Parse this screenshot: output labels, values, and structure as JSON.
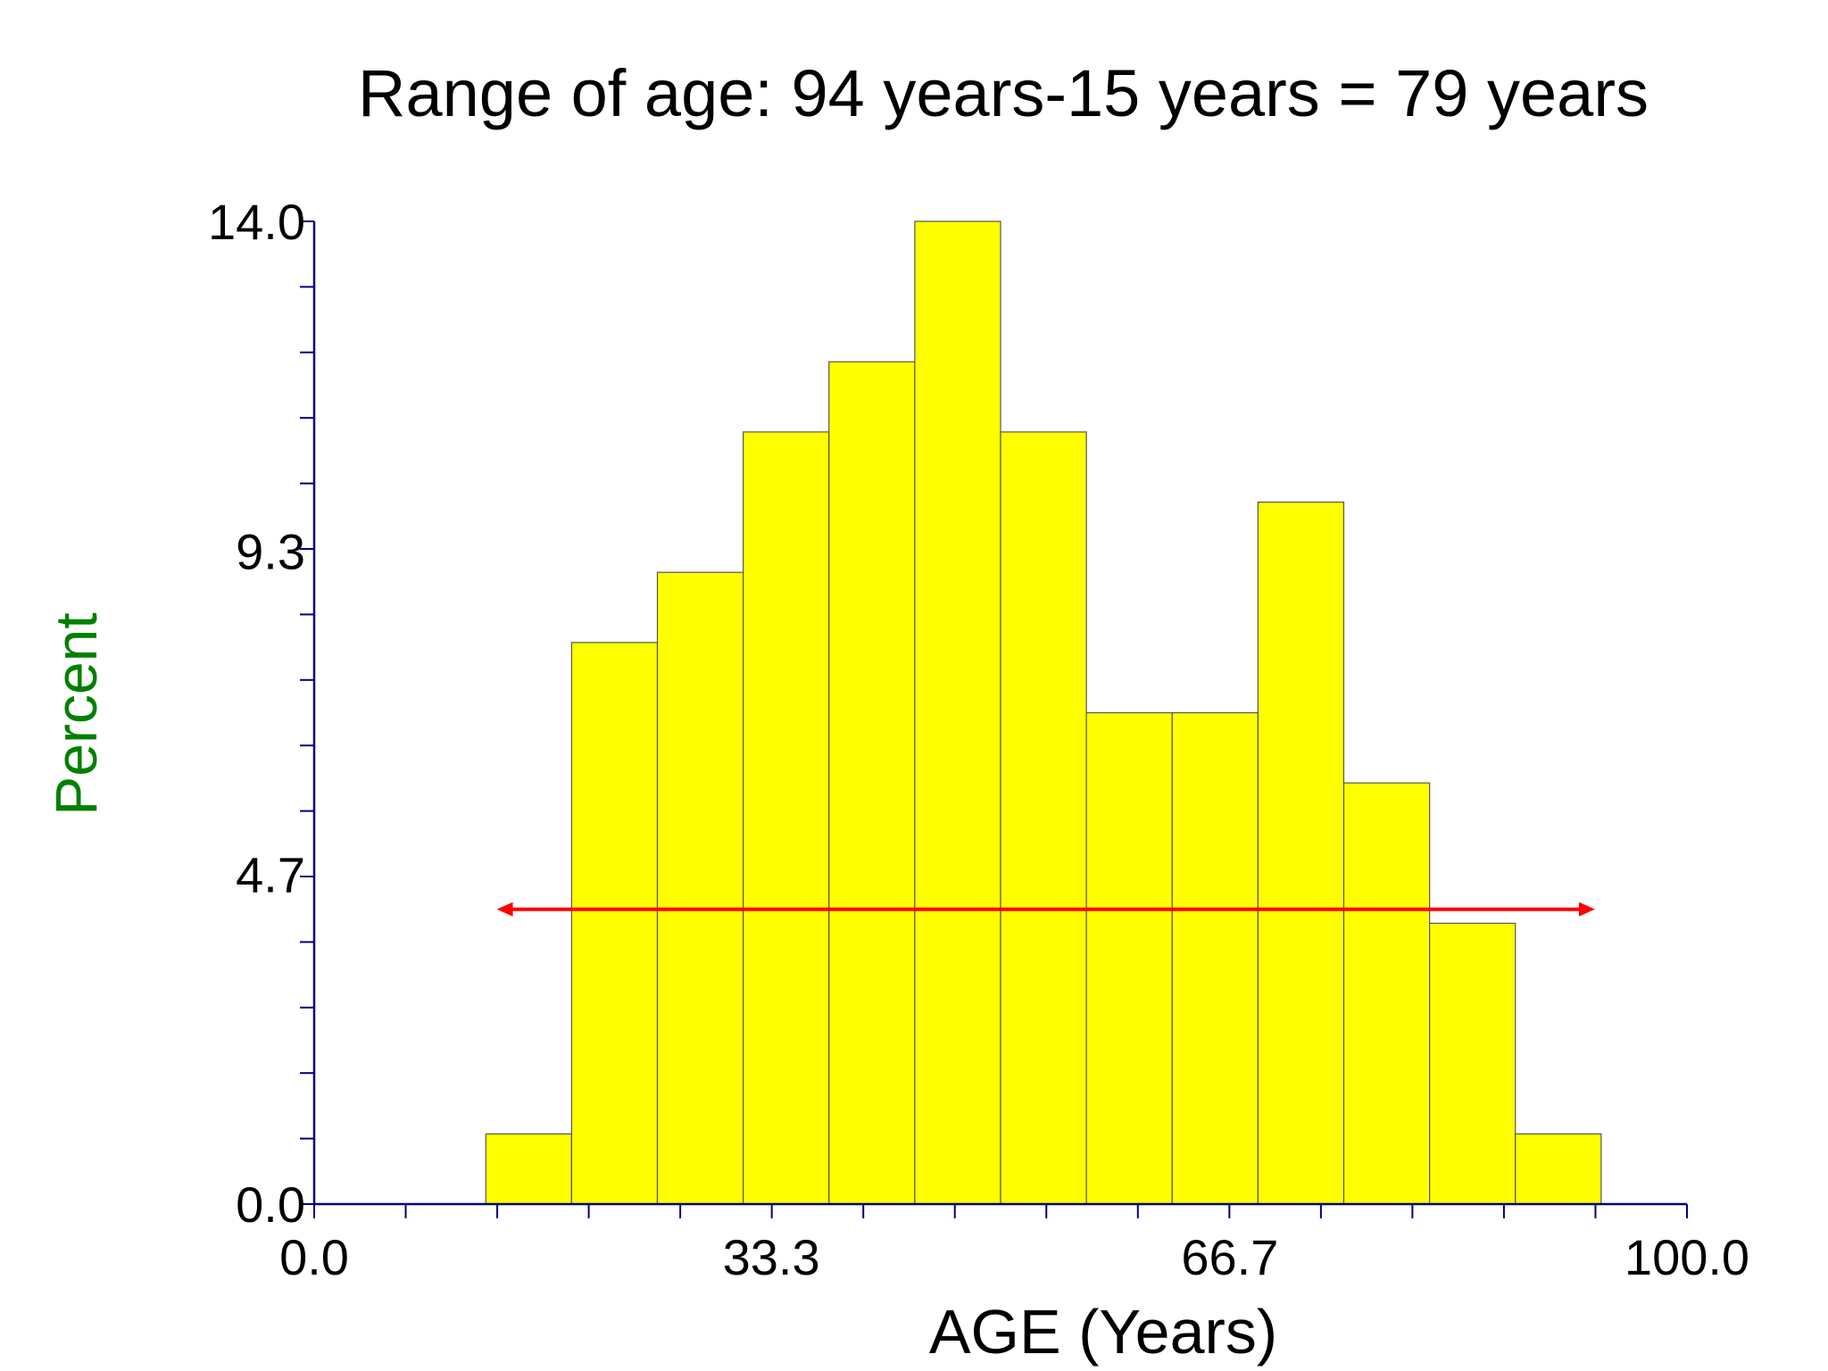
{
  "chart_data": {
    "type": "bar",
    "title": "Range of age: 94 years-15 years = 79 years",
    "xlabel": "AGE (Years)",
    "ylabel": "Percent",
    "xlim": [
      0.0,
      100.0
    ],
    "ylim": [
      0.0,
      14.0
    ],
    "x_tick_labels": [
      "0.0",
      "33.3",
      "66.7",
      "100.0"
    ],
    "y_tick_labels": [
      "0.0",
      "4.7",
      "9.3",
      "14.0"
    ],
    "bin_width": 6.25,
    "bins": [
      {
        "start": 12.5,
        "end": 18.75,
        "value": 1.0
      },
      {
        "start": 18.75,
        "end": 25.0,
        "value": 8.0
      },
      {
        "start": 25.0,
        "end": 31.25,
        "value": 9.0
      },
      {
        "start": 31.25,
        "end": 37.5,
        "value": 11.0
      },
      {
        "start": 37.5,
        "end": 43.75,
        "value": 12.0
      },
      {
        "start": 43.75,
        "end": 50.0,
        "value": 14.0
      },
      {
        "start": 50.0,
        "end": 56.25,
        "value": 11.0
      },
      {
        "start": 56.25,
        "end": 62.5,
        "value": 7.0
      },
      {
        "start": 62.5,
        "end": 68.75,
        "value": 7.0
      },
      {
        "start": 68.75,
        "end": 75.0,
        "value": 10.0
      },
      {
        "start": 75.0,
        "end": 81.25,
        "value": 6.0
      },
      {
        "start": 81.25,
        "end": 87.5,
        "value": 4.0
      },
      {
        "start": 87.5,
        "end": 93.75,
        "value": 1.0
      }
    ],
    "range_arrow": {
      "x_start": 13.3,
      "x_end": 93.3,
      "y": 4.2
    },
    "grid": false,
    "legend": "none",
    "colors": {
      "bar_fill": "#ffff00",
      "bar_stroke": "#555555",
      "axis": "#000080",
      "arrow": "#ff0000",
      "ylabel": "#008000",
      "text": "#000000"
    }
  }
}
